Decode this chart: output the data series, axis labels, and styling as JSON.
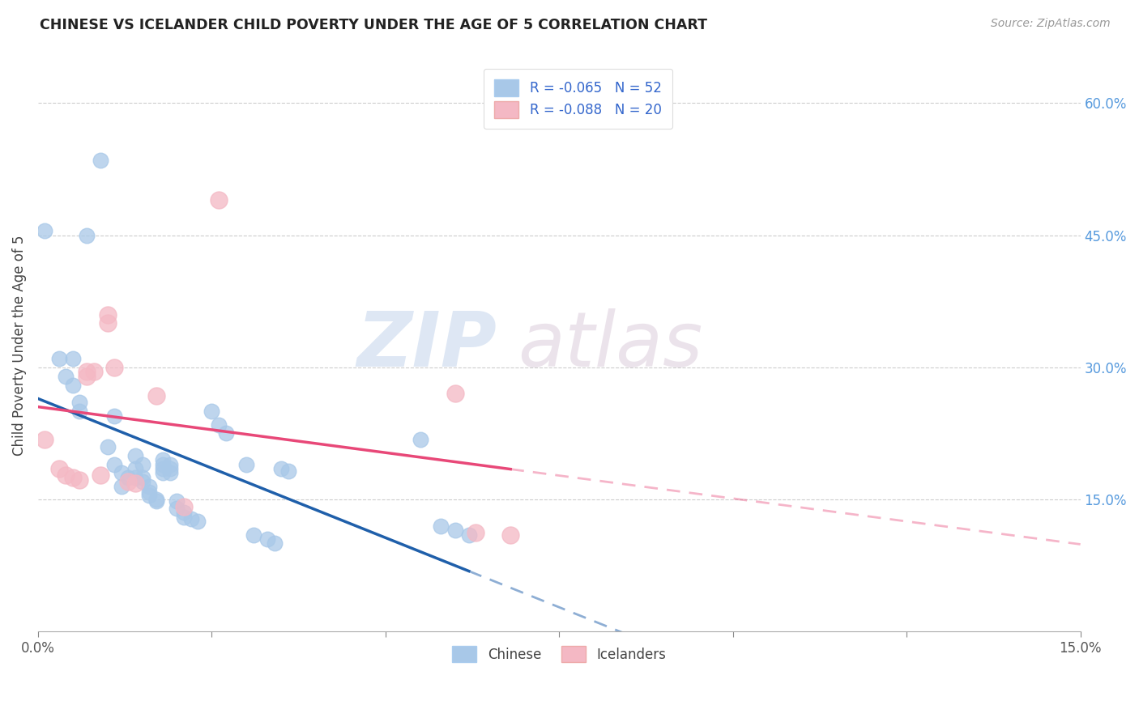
{
  "title": "CHINESE VS ICELANDER CHILD POVERTY UNDER THE AGE OF 5 CORRELATION CHART",
  "source": "Source: ZipAtlas.com",
  "ylabel": "Child Poverty Under the Age of 5",
  "right_yticks": [
    "60.0%",
    "45.0%",
    "30.0%",
    "15.0%"
  ],
  "right_ytick_vals": [
    0.6,
    0.45,
    0.3,
    0.15
  ],
  "legend_chinese": "R = -0.065   N = 52",
  "legend_icelander": "R = -0.088   N = 20",
  "watermark_zip": "ZIP",
  "watermark_atlas": "atlas",
  "chinese_color": "#a8c8e8",
  "icelander_color": "#f4b8c4",
  "trend_chinese_color": "#1f5faa",
  "trend_icelander_color": "#e84878",
  "chinese_scatter": [
    [
      0.001,
      0.455
    ],
    [
      0.003,
      0.31
    ],
    [
      0.004,
      0.29
    ],
    [
      0.005,
      0.31
    ],
    [
      0.005,
      0.28
    ],
    [
      0.006,
      0.26
    ],
    [
      0.006,
      0.25
    ],
    [
      0.007,
      0.45
    ],
    [
      0.009,
      0.535
    ],
    [
      0.01,
      0.21
    ],
    [
      0.011,
      0.19
    ],
    [
      0.011,
      0.245
    ],
    [
      0.012,
      0.18
    ],
    [
      0.012,
      0.165
    ],
    [
      0.013,
      0.175
    ],
    [
      0.014,
      0.2
    ],
    [
      0.014,
      0.185
    ],
    [
      0.014,
      0.175
    ],
    [
      0.015,
      0.19
    ],
    [
      0.015,
      0.175
    ],
    [
      0.015,
      0.17
    ],
    [
      0.016,
      0.165
    ],
    [
      0.016,
      0.158
    ],
    [
      0.016,
      0.155
    ],
    [
      0.017,
      0.15
    ],
    [
      0.017,
      0.148
    ],
    [
      0.018,
      0.19
    ],
    [
      0.018,
      0.185
    ],
    [
      0.018,
      0.195
    ],
    [
      0.018,
      0.18
    ],
    [
      0.019,
      0.19
    ],
    [
      0.019,
      0.185
    ],
    [
      0.019,
      0.18
    ],
    [
      0.02,
      0.148
    ],
    [
      0.02,
      0.14
    ],
    [
      0.021,
      0.135
    ],
    [
      0.021,
      0.13
    ],
    [
      0.022,
      0.128
    ],
    [
      0.023,
      0.125
    ],
    [
      0.025,
      0.25
    ],
    [
      0.026,
      0.235
    ],
    [
      0.027,
      0.225
    ],
    [
      0.03,
      0.19
    ],
    [
      0.031,
      0.11
    ],
    [
      0.033,
      0.105
    ],
    [
      0.034,
      0.1
    ],
    [
      0.035,
      0.185
    ],
    [
      0.036,
      0.182
    ],
    [
      0.055,
      0.218
    ],
    [
      0.058,
      0.12
    ],
    [
      0.06,
      0.115
    ],
    [
      0.062,
      0.11
    ]
  ],
  "icelander_scatter": [
    [
      0.001,
      0.218
    ],
    [
      0.003,
      0.185
    ],
    [
      0.004,
      0.178
    ],
    [
      0.005,
      0.175
    ],
    [
      0.006,
      0.172
    ],
    [
      0.007,
      0.295
    ],
    [
      0.007,
      0.29
    ],
    [
      0.008,
      0.295
    ],
    [
      0.009,
      0.178
    ],
    [
      0.01,
      0.36
    ],
    [
      0.01,
      0.35
    ],
    [
      0.011,
      0.3
    ],
    [
      0.013,
      0.17
    ],
    [
      0.014,
      0.168
    ],
    [
      0.017,
      0.268
    ],
    [
      0.021,
      0.142
    ],
    [
      0.026,
      0.49
    ],
    [
      0.06,
      0.27
    ],
    [
      0.063,
      0.112
    ],
    [
      0.068,
      0.11
    ]
  ],
  "xmin": 0.0,
  "xmax": 0.15,
  "ymin": 0.0,
  "ymax": 0.65,
  "grid_color": "#cccccc",
  "background_color": "#ffffff",
  "trend_chinese_start_x": 0.0,
  "trend_chinese_solid_end_x": 0.062,
  "trend_chinese_end_x": 0.15,
  "trend_icelander_start_x": 0.0,
  "trend_icelander_solid_end_x": 0.068,
  "trend_icelander_end_x": 0.15
}
